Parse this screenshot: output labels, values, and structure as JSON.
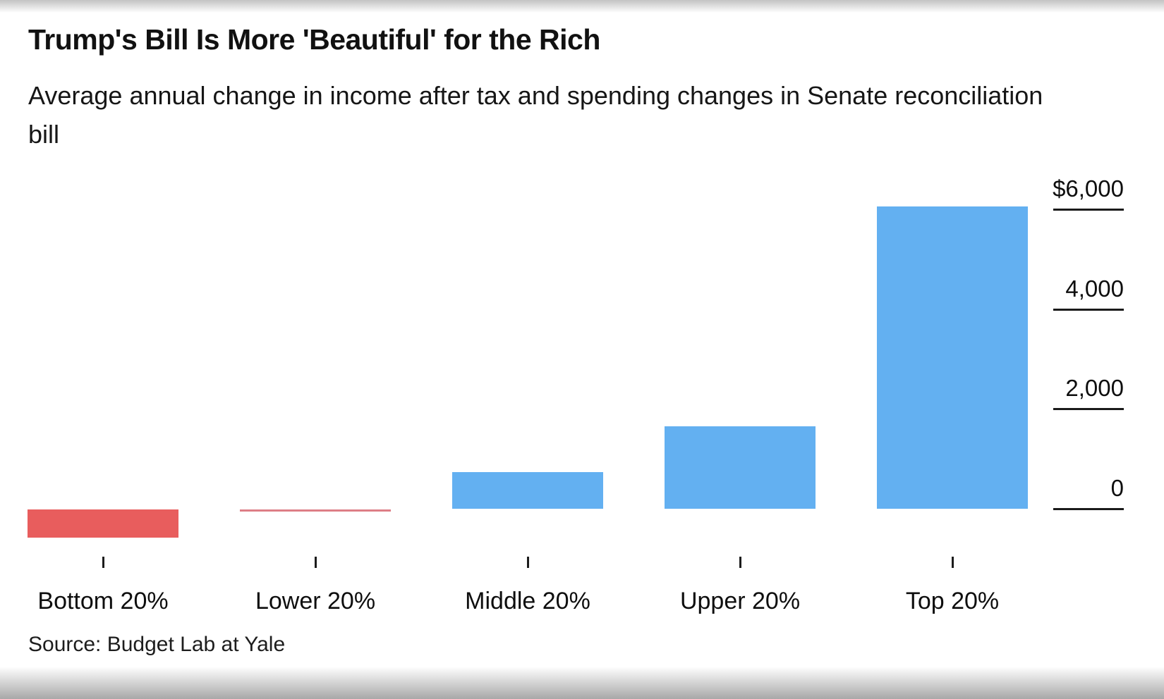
{
  "header": {
    "title": "Trump's Bill Is More 'Beautiful' for the Rich",
    "subtitle": "Average annual change in income after tax and spending changes in Senate reconciliation bill"
  },
  "footer": {
    "source": "Source: Budget Lab at Yale"
  },
  "chart_data": {
    "type": "bar",
    "title": "Trump's Bill Is More 'Beautiful' for the Rich",
    "subtitle": "Average annual change in income after tax and spending changes in Senate reconciliation bill",
    "unit": "US dollars per year",
    "categories": [
      "Bottom 20%",
      "Lower 20%",
      "Middle 20%",
      "Upper 20%",
      "Top 20%"
    ],
    "values": [
      -560,
      -40,
      730,
      1650,
      6050
    ],
    "bar_colors": [
      "#e85d5d",
      "#dd7e86",
      "#63b0f1",
      "#63b0f1",
      "#63b0f1"
    ],
    "positive_color": "#63b0f1",
    "negative_color": "#e85d5d",
    "grid": "off",
    "legend": "none",
    "y_axis": {
      "side": "right",
      "ylim": [
        -700,
        6300
      ],
      "ticks": [
        {
          "label": "$6,000",
          "value": 6000
        },
        {
          "label": "4,000",
          "value": 4000
        },
        {
          "label": "2,000",
          "value": 2000
        },
        {
          "label": "0",
          "value": 0
        }
      ]
    },
    "source": "Source: Budget Lab at Yale"
  }
}
